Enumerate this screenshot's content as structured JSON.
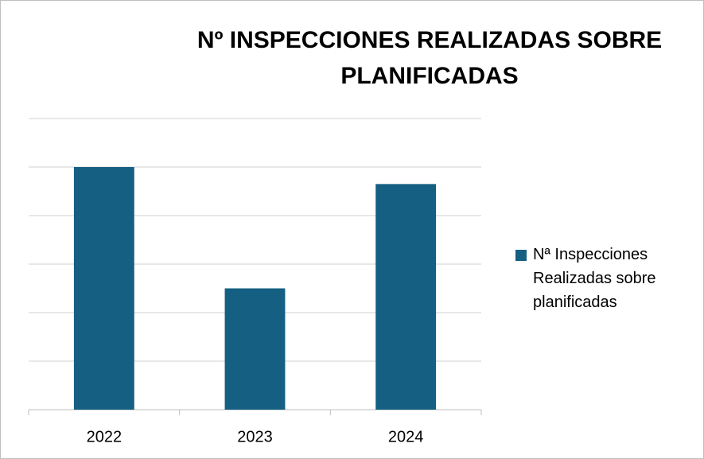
{
  "chart_data": {
    "type": "bar",
    "title": "Nº INSPECCIONES REALIZADAS SOBRE PLANIFICADAS",
    "categories": [
      "2022",
      "2023",
      "2024"
    ],
    "series": [
      {
        "name": "Nª Inspecciones Realizadas sobre planificadas",
        "color": "#155f82",
        "values": [
          5,
          2.5,
          4.65
        ]
      }
    ],
    "ylim": [
      0,
      6
    ],
    "yticks": [
      0,
      1,
      2,
      3,
      4,
      5,
      6
    ],
    "grid": true,
    "legend": "right"
  }
}
